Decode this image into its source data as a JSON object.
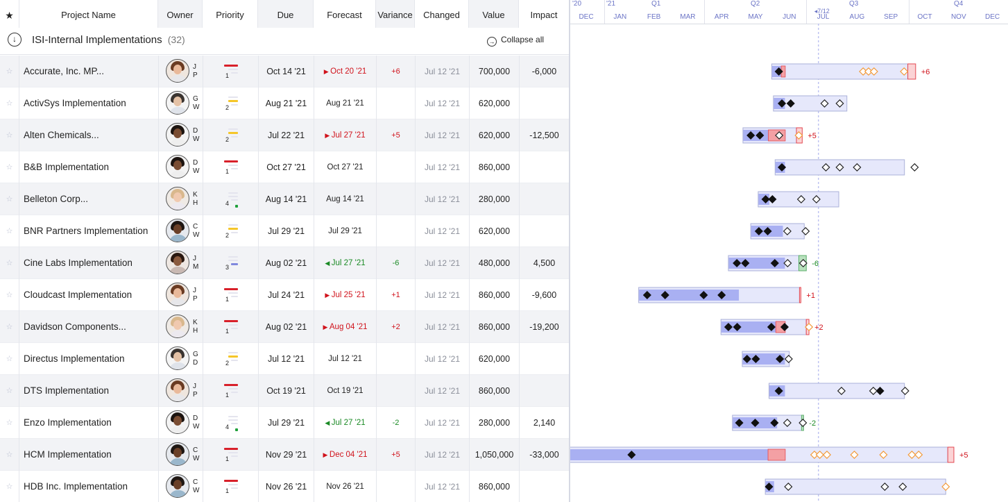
{
  "header": {
    "star_label": "★",
    "columns": {
      "name": "Project Name",
      "owner": "Owner",
      "priority": "Priority",
      "due": "Due",
      "forecast": "Forecast",
      "variance": "Variance",
      "changed": "Changed",
      "value": "Value",
      "impact": "Impact"
    }
  },
  "group": {
    "title": "ISI-Internal Implementations",
    "count": "(32)",
    "collapse_all": "Collapse all",
    "collapse_icon": "↓",
    "collapse_all_icon": "→"
  },
  "colors": {
    "bar_done": "#a9b0f2",
    "bar_frame": "#e6e8fb",
    "bar_border": "#aab0d8",
    "late": "#f3a0a4",
    "late_line": "#e34750",
    "ahead": "#b8e0bd",
    "ahead_line": "#5cb06a",
    "today": "#b7bcf0",
    "header_text": "#6b74c6",
    "orange": "#f29a3a"
  },
  "timeline": {
    "top_labels": [
      "'20",
      "'21",
      "Q1",
      "Q2",
      "Q3",
      "Q4"
    ],
    "months": [
      "DEC",
      "JAN",
      "FEB",
      "MAR",
      "APR",
      "MAY",
      "JUN",
      "JUL",
      "AUG",
      "SEP",
      "OCT",
      "NOV",
      "DEC"
    ],
    "today_label": "7/12"
  },
  "rows": [
    {
      "name": "Accurate, Inc. MP...",
      "initials": [
        "J",
        "P"
      ],
      "avatar": "female-light",
      "priority": "1",
      "due": "Oct 14 '21",
      "forecast": "Oct 20 '21",
      "forecast_state": "late",
      "variance": "+6",
      "changed": "Jul 12 '21",
      "value": "700,000",
      "impact": "-6,000",
      "gantt": {
        "start": 5.98,
        "done_end": 6.38,
        "late_from": 6.26,
        "end": 10.0,
        "late_end": 10.23,
        "filled": [
          6.19
        ],
        "open": [],
        "orange": [
          8.68,
          8.84,
          9.0,
          9.89
        ],
        "tag": "+6"
      }
    },
    {
      "name": "ActivSys Implementation",
      "initials": [
        "G",
        "W"
      ],
      "avatar": "male-light",
      "priority": "2",
      "due": "Aug 21 '21",
      "forecast": "Aug 21 '21",
      "forecast_state": "none",
      "variance": "",
      "changed": "Jul 12 '21",
      "value": "620,000",
      "impact": "",
      "gantt": {
        "start": 6.03,
        "done_end": 6.38,
        "end": 8.2,
        "filled": [
          6.28,
          6.54
        ],
        "open": [
          7.54,
          7.99
        ],
        "orange": []
      }
    },
    {
      "name": "Alten Chemicals...",
      "initials": [
        "D",
        "W"
      ],
      "avatar": "male-dark",
      "priority": "2",
      "due": "Jul 22 '21",
      "forecast": "Jul 27 '21",
      "forecast_state": "late",
      "variance": "+5",
      "changed": "Jul 12 '21",
      "value": "620,000",
      "impact": "-12,500",
      "gantt": {
        "start": 5.13,
        "done_end": 6.38,
        "late_from": 5.88,
        "end": 6.71,
        "late_end": 6.88,
        "filled": [
          5.36,
          5.63
        ],
        "open": [
          6.2
        ],
        "orange": [
          6.78
        ],
        "tag": "+5"
      }
    },
    {
      "name": "B&B Implementation",
      "initials": [
        "D",
        "W"
      ],
      "avatar": "male-dark",
      "priority": "1",
      "due": "Oct 27 '21",
      "forecast": "Oct 27 '21",
      "forecast_state": "none",
      "variance": "",
      "changed": "Jul 12 '21",
      "value": "860,000",
      "impact": "",
      "gantt": {
        "start": 6.08,
        "done_end": 6.38,
        "end": 9.9,
        "filled": [
          6.28
        ],
        "open": [
          7.58,
          7.99,
          8.5,
          10.2
        ],
        "orange": []
      }
    },
    {
      "name": "Belleton Corp...",
      "initials": [
        "K",
        "H"
      ],
      "avatar": "female-blond",
      "priority": "4",
      "due": "Aug 14 '21",
      "forecast": "Aug 14 '21",
      "forecast_state": "none",
      "variance": "",
      "changed": "Jul 12 '21",
      "value": "280,000",
      "impact": "",
      "gantt": {
        "start": 5.58,
        "done_end": 5.92,
        "end": 7.96,
        "filled": [
          5.8,
          6.0
        ],
        "open": [
          6.85,
          7.3
        ],
        "orange": []
      }
    },
    {
      "name": "BNR Partners Implementation",
      "initials": [
        "C",
        "W"
      ],
      "avatar": "male-dark2",
      "priority": "2",
      "due": "Jul 29 '21",
      "forecast": "Jul 29 '21",
      "forecast_state": "none",
      "variance": "",
      "changed": "Jul 12 '21",
      "value": "620,000",
      "impact": "",
      "gantt": {
        "start": 5.36,
        "done_end": 6.32,
        "end": 6.94,
        "filled": [
          5.6,
          5.86
        ],
        "open": [
          6.44,
          6.98
        ],
        "orange": []
      }
    },
    {
      "name": "Cine Labs Implementation",
      "initials": [
        "J",
        "M"
      ],
      "avatar": "female-dark",
      "priority": "3",
      "due": "Aug 02 '21",
      "forecast": "Jul 27 '21",
      "forecast_state": "ahead",
      "variance": "-6",
      "changed": "Jul 12 '21",
      "value": "480,000",
      "impact": "4,500",
      "gantt": {
        "start": 4.7,
        "done_end": 6.38,
        "end": 7.0,
        "ahead_from": 6.78,
        "filled": [
          4.95,
          5.2,
          6.07
        ],
        "open": [
          6.45,
          6.91
        ],
        "orange": [],
        "tag": "-6",
        "tag_state": "ahead"
      }
    },
    {
      "name": "Cloudcast Implementation",
      "initials": [
        "J",
        "P"
      ],
      "avatar": "female-light",
      "priority": "1",
      "due": "Jul 24 '21",
      "forecast": "Jul 25 '21",
      "forecast_state": "late",
      "variance": "+1",
      "changed": "Jul 12 '21",
      "value": "860,000",
      "impact": "-9,600",
      "gantt": {
        "start": 2.05,
        "done_end": 5.02,
        "end": 6.8,
        "late_end": 6.84,
        "filled": [
          2.3,
          2.83,
          3.97,
          4.5
        ],
        "open": [],
        "orange": [],
        "tag": "+1"
      }
    },
    {
      "name": "Davidson Components...",
      "initials": [
        "K",
        "H"
      ],
      "avatar": "female-blond",
      "priority": "1",
      "due": "Aug 02 '21",
      "forecast": "Aug 04 '21",
      "forecast_state": "late",
      "variance": "+2",
      "changed": "Jul 12 '21",
      "value": "860,000",
      "impact": "-19,200",
      "gantt": {
        "start": 4.48,
        "done_end": 6.38,
        "late_from": 6.1,
        "end": 7.0,
        "late_end": 7.08,
        "filled": [
          4.7,
          4.96,
          5.97,
          6.36
        ],
        "open": [],
        "orange": [
          7.08
        ],
        "tag": "+2"
      }
    },
    {
      "name": "Directus Implementation",
      "initials": [
        "G",
        "D"
      ],
      "avatar": "male-light",
      "priority": "2",
      "due": "Jul 12 '21",
      "forecast": "Jul 12 '21",
      "forecast_state": "none",
      "variance": "",
      "changed": "Jul 12 '21",
      "value": "620,000",
      "impact": "",
      "gantt": {
        "start": 5.11,
        "done_end": 6.38,
        "end": 6.5,
        "filled": [
          5.25,
          5.51,
          6.22
        ],
        "open": [
          6.48
        ],
        "orange": []
      }
    },
    {
      "name": "DTS Implementation",
      "initials": [
        "J",
        "P"
      ],
      "avatar": "female-light",
      "priority": "1",
      "due": "Oct 19 '21",
      "forecast": "Oct 19 '21",
      "forecast_state": "none",
      "variance": "",
      "changed": "Jul 12 '21",
      "value": "860,000",
      "impact": "",
      "gantt": {
        "start": 5.9,
        "done_end": 6.38,
        "end": 9.9,
        "filled": [
          6.19,
          9.18
        ],
        "open": [
          8.04,
          8.98,
          9.92
        ],
        "orange": []
      }
    },
    {
      "name": "Enzo Implementation",
      "initials": [
        "D",
        "W"
      ],
      "avatar": "male-dark",
      "priority": "4",
      "due": "Jul 29 '21",
      "forecast": "Jul 27 '21",
      "forecast_state": "ahead",
      "variance": "-2",
      "changed": "Jul 12 '21",
      "value": "280,000",
      "impact": "2,140",
      "gantt": {
        "start": 4.82,
        "done_end": 6.15,
        "end": 6.92,
        "ahead_from": 6.86,
        "filled": [
          5.02,
          5.49,
          6.06
        ],
        "open": [
          6.44,
          6.9
        ],
        "orange": [],
        "tag": "-2",
        "tag_state": "ahead"
      }
    },
    {
      "name": "HCM Implementation",
      "initials": [
        "C",
        "W"
      ],
      "avatar": "male-dark2",
      "priority": "1",
      "due": "Nov 29 '21",
      "forecast": "Dec 04 '21",
      "forecast_state": "late",
      "variance": "+5",
      "changed": "Jul 12 '21",
      "value": "1,050,000",
      "impact": "-33,000",
      "gantt": {
        "start": 0.0,
        "done_end": 6.38,
        "late_from": 5.87,
        "end": 11.18,
        "late_end": 11.36,
        "filled": [
          1.84
        ],
        "open": [],
        "orange": [
          7.24,
          7.4,
          7.61,
          8.42,
          9.28,
          10.12,
          10.32
        ],
        "tag": "+5"
      }
    },
    {
      "name": "HDB Inc. Implementation",
      "initials": [
        "C",
        "W"
      ],
      "avatar": "male-dark2",
      "priority": "1",
      "due": "Nov 26 '21",
      "forecast": "Nov 26 '21",
      "forecast_state": "none",
      "variance": "",
      "changed": "Jul 12 '21",
      "value": "860,000",
      "impact": "",
      "gantt": {
        "start": 5.79,
        "done_end": 6.06,
        "end": 11.12,
        "filled": [
          5.9
        ],
        "open": [
          6.47,
          9.32,
          9.85
        ],
        "orange": [
          11.12
        ]
      }
    }
  ]
}
